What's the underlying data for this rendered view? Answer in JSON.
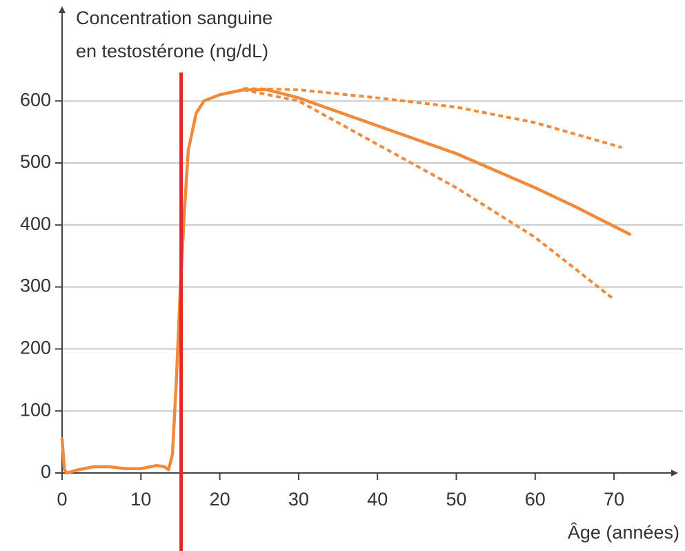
{
  "chart_data": {
    "type": "line",
    "ylabel": [
      "Concentration sanguine",
      "en testostérone (ng/dL)"
    ],
    "xlabel": "Âge (années)",
    "xlim": [
      0,
      77
    ],
    "ylim": [
      0,
      740
    ],
    "xticks": [
      0,
      10,
      20,
      30,
      40,
      50,
      60,
      70
    ],
    "yticks": [
      0,
      100,
      200,
      300,
      400,
      500,
      600
    ],
    "grid": true,
    "marker_x": 15.1,
    "marker_color": "#e8262a",
    "series": [
      {
        "color": "#f08a3c",
        "dashed": false,
        "x": [
          0,
          0.3,
          0.6,
          2,
          4,
          6,
          8,
          10,
          12,
          13,
          13.5,
          14,
          14.5,
          15,
          15.5,
          16,
          17,
          18,
          20,
          23,
          26,
          30,
          40,
          50,
          60,
          65,
          72
        ],
        "values": [
          55,
          5,
          0,
          5,
          10,
          10,
          7,
          7,
          12,
          10,
          5,
          30,
          150,
          300,
          420,
          520,
          580,
          600,
          610,
          618,
          618,
          605,
          560,
          515,
          460,
          430,
          385
        ]
      },
      {
        "color": "#f08a3c",
        "dashed": true,
        "x": [
          23,
          30,
          40,
          50,
          60,
          71
        ],
        "values": [
          620,
          618,
          605,
          590,
          565,
          525
        ]
      },
      {
        "color": "#f08a3c",
        "dashed": true,
        "x": [
          23,
          30,
          40,
          50,
          60,
          70
        ],
        "values": [
          618,
          600,
          530,
          460,
          380,
          280
        ]
      }
    ]
  }
}
